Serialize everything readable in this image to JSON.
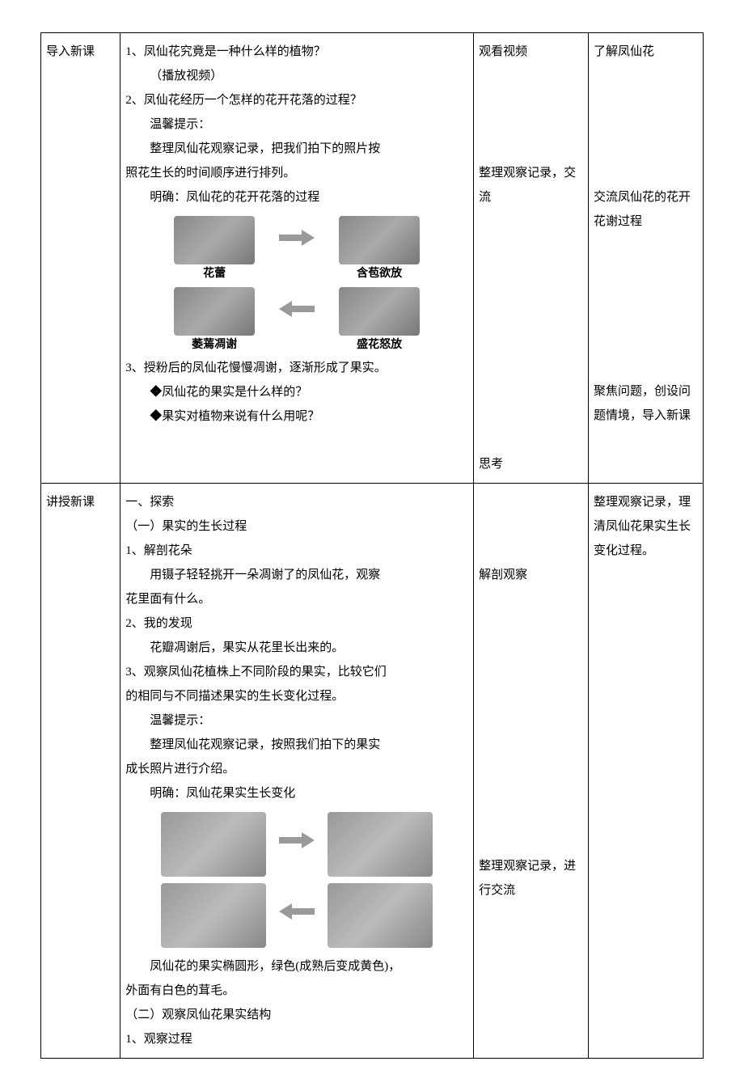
{
  "rows": [
    {
      "col1": "导入新课",
      "col2_parts": [
        {
          "cls": "no-indent",
          "text": "1、凤仙花究竟是一种什么样的植物？"
        },
        {
          "cls": "indent1",
          "text": "（播放视频）"
        },
        {
          "cls": "no-indent",
          "text": "2、凤仙花经历一个怎样的花开花落的过程？"
        },
        {
          "cls": "indent1",
          "text": "温馨提示："
        },
        {
          "cls": "indent1",
          "text": "整理凤仙花观察记录，把我们拍下的照片按"
        },
        {
          "cls": "no-indent",
          "text": "照花生长的时间顺序进行排列。"
        },
        {
          "cls": "indent1",
          "text": "明确：凤仙花的花开花落的过程"
        },
        {
          "type": "flower-diagram"
        },
        {
          "cls": "no-indent",
          "text": "3、授粉后的凤仙花慢慢凋谢，逐渐形成了果实。"
        },
        {
          "cls": "indent1",
          "text": "◆凤仙花的果实是什么样的？"
        },
        {
          "cls": "indent1",
          "text": "◆果实对植物来说有什么用呢？"
        }
      ],
      "col3_parts": [
        {
          "text": "观看视频",
          "gap": 4
        },
        {
          "text": "整理观察记录，交流",
          "gap": 10
        },
        {
          "text": "思考",
          "gap": 0
        }
      ],
      "col4_parts": [
        {
          "text": "了解凤仙花",
          "gap": 5
        },
        {
          "text": "交流凤仙花的花开花谢过程",
          "gap": 6
        },
        {
          "text": "聚焦问题，创设问题情境，导入新课",
          "gap": 0
        }
      ]
    },
    {
      "col1": "讲授新课",
      "col2_parts": [
        {
          "cls": "no-indent",
          "text": "一、探索"
        },
        {
          "cls": "no-indent",
          "text": "（一）果实的生长过程"
        },
        {
          "cls": "no-indent",
          "text": "1、解剖花朵"
        },
        {
          "cls": "indent1",
          "text": "用镊子轻轻挑开一朵凋谢了的凤仙花，观察"
        },
        {
          "cls": "no-indent",
          "text": "花里面有什么。"
        },
        {
          "cls": "no-indent",
          "text": "2、我的发现"
        },
        {
          "cls": "indent1",
          "text": "花瓣凋谢后，果实从花里长出来的。"
        },
        {
          "cls": "no-indent",
          "text": "3、观察凤仙花植株上不同阶段的果实，比较它们"
        },
        {
          "cls": "no-indent",
          "text": "的相同与不同描述果实的生长变化过程。"
        },
        {
          "cls": "indent1",
          "text": "温馨提示："
        },
        {
          "cls": "indent1",
          "text": "整理凤仙花观察记录，按照我们拍下的果实"
        },
        {
          "cls": "no-indent",
          "text": "成长照片进行介绍。"
        },
        {
          "cls": "indent1",
          "text": "明确：凤仙花果实生长变化"
        },
        {
          "type": "fruit-diagram"
        },
        {
          "cls": "indent1",
          "text": "凤仙花的果实椭圆形，绿色(成熟后变成黄色)，"
        },
        {
          "cls": "no-indent",
          "text": "外面有白色的茸毛。"
        },
        {
          "cls": "no-indent",
          "text": "（二）观察凤仙花果实结构"
        },
        {
          "cls": "no-indent",
          "text": "1、观察过程"
        }
      ],
      "col3_parts": [
        {
          "text": "",
          "gap": 3
        },
        {
          "text": "解剖观察",
          "gap": 11
        },
        {
          "text": "整理观察记录，进行交流",
          "gap": 0
        }
      ],
      "col4_parts": [
        {
          "text": "整理观察记录，理清凤仙花果实生长变化过程。",
          "gap": 0
        }
      ]
    }
  ],
  "flower_diagram": {
    "labels": {
      "a": "花蕾",
      "b": "含苞欲放",
      "c": "萎蔫凋谢",
      "d": "盛花怒放"
    }
  }
}
